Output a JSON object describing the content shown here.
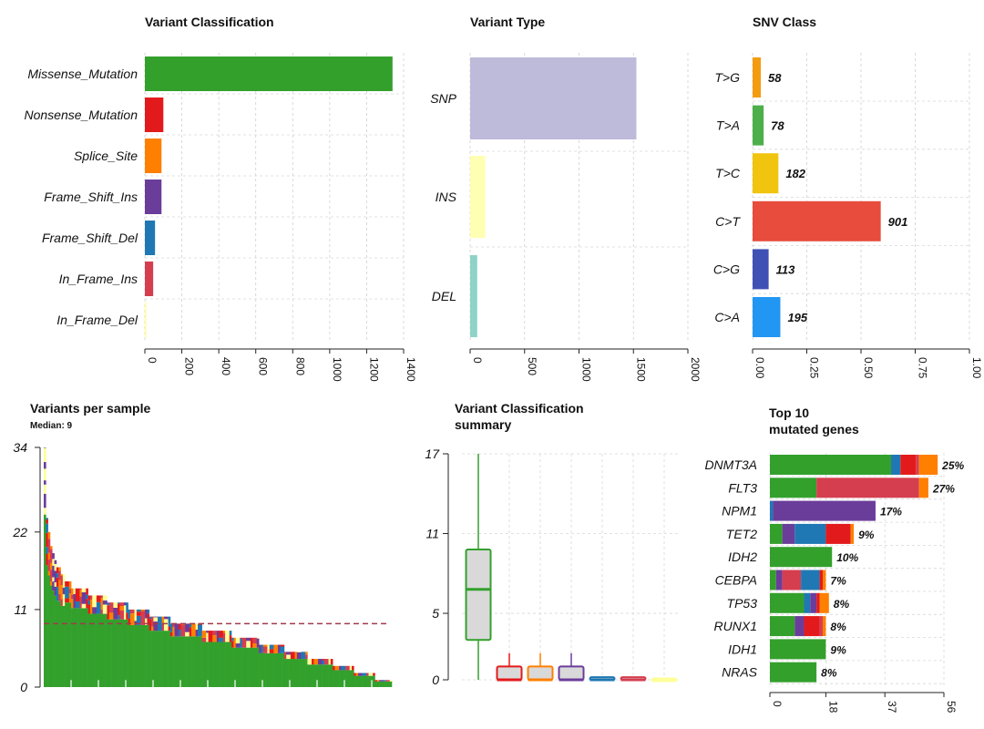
{
  "colors": {
    "green": "#33a02c",
    "red": "#e31a1c",
    "orange": "#ff7f00",
    "purple": "#6a3d9a",
    "blue": "#1f78b4",
    "crimson": "#d53e4f",
    "yellow": "#ffff99",
    "snp": "#bebada",
    "ins": "#ffffb3",
    "del": "#8dd3c7",
    "tg": "#f39c12",
    "ta": "#4daf4a",
    "tc": "#f1c40f",
    "ct": "#e74c3c",
    "cg": "#3f51b5",
    "ca": "#2196f3"
  },
  "chart_data": [
    {
      "type": "bar",
      "orientation": "horizontal",
      "title": "Variant Classification",
      "categories": [
        "Missense_Mutation",
        "Nonsense_Mutation",
        "Splice_Site",
        "Frame_Shift_Ins",
        "Frame_Shift_Del",
        "In_Frame_Ins",
        "In_Frame_Del"
      ],
      "values": [
        1340,
        100,
        90,
        90,
        55,
        45,
        8
      ],
      "colors": [
        "#33a02c",
        "#e31a1c",
        "#ff7f00",
        "#6a3d9a",
        "#1f78b4",
        "#d53e4f",
        "#ffff99"
      ],
      "xlim": [
        0,
        1400
      ],
      "xticks": [
        "0",
        "200",
        "400",
        "600",
        "800",
        "1000",
        "1200",
        "1400"
      ],
      "grid": true
    },
    {
      "type": "bar",
      "orientation": "horizontal",
      "title": "Variant Type",
      "categories": [
        "SNP",
        "INS",
        "DEL"
      ],
      "values": [
        1527,
        140,
        65
      ],
      "colors": [
        "#bebada",
        "#ffffb3",
        "#8dd3c7"
      ],
      "xlim": [
        0,
        2000
      ],
      "xticks": [
        "0",
        "500",
        "1000",
        "1500",
        "2000"
      ],
      "grid": true
    },
    {
      "type": "bar",
      "orientation": "horizontal",
      "title": "SNV Class",
      "categories": [
        "T>G",
        "T>A",
        "T>C",
        "C>T",
        "C>G",
        "C>A"
      ],
      "values": [
        0.038,
        0.051,
        0.119,
        0.591,
        0.074,
        0.128
      ],
      "labels": [
        "58",
        "78",
        "182",
        "901",
        "113",
        "195"
      ],
      "colors": [
        "#f39c12",
        "#4daf4a",
        "#f1c40f",
        "#e74c3c",
        "#3f51b5",
        "#2196f3"
      ],
      "xlim": [
        0,
        1
      ],
      "xticks": [
        "0.00",
        "0.25",
        "0.50",
        "0.75",
        "1.00"
      ],
      "grid": true
    },
    {
      "type": "bar",
      "stacked": true,
      "title": "Variants per sample",
      "subtitle": "Median: 9",
      "median": 9,
      "ylim": [
        0,
        34
      ],
      "yticks": [
        "0",
        "11",
        "22",
        "34"
      ],
      "samples": [
        34,
        24,
        22,
        20,
        19,
        18,
        17,
        17,
        16,
        16,
        15,
        15,
        15,
        14,
        14,
        14,
        14,
        14,
        14,
        14,
        14,
        13,
        13,
        13,
        13,
        13,
        13,
        13,
        13,
        13,
        12,
        12,
        12,
        12,
        12,
        12,
        12,
        12,
        12,
        12,
        11,
        11,
        11,
        11,
        11,
        11,
        11,
        11,
        11,
        11,
        10,
        10,
        10,
        10,
        10,
        10,
        10,
        10,
        10,
        10,
        9,
        9,
        9,
        9,
        9,
        9,
        9,
        9,
        9,
        9,
        9,
        9,
        9,
        9,
        9,
        8,
        8,
        8,
        8,
        8,
        8,
        8,
        8,
        8,
        8,
        8,
        8,
        8,
        8,
        7,
        7,
        7,
        7,
        7,
        7,
        7,
        7,
        7,
        7,
        7,
        7,
        7,
        6,
        6,
        6,
        6,
        6,
        6,
        6,
        6,
        6,
        6,
        6,
        6,
        5,
        5,
        5,
        5,
        5,
        5,
        5,
        5,
        5,
        5,
        5,
        4,
        4,
        4,
        4,
        4,
        4,
        4,
        4,
        4,
        4,
        4,
        4,
        3,
        3,
        3,
        3,
        3,
        3,
        3,
        3,
        3,
        3,
        2,
        2,
        2,
        2,
        2,
        2,
        2,
        2,
        2,
        2,
        1,
        1,
        1,
        1,
        1,
        1,
        1,
        1
      ],
      "colors": [
        "#33a02c",
        "#e31a1c",
        "#ff7f00",
        "#6a3d9a",
        "#1f78b4",
        "#d53e4f",
        "#ffff99"
      ]
    },
    {
      "type": "box",
      "title": "Variant Classification summary",
      "ylim": [
        0,
        17
      ],
      "yticks": [
        "0",
        "5",
        "11",
        "17"
      ],
      "boxes": [
        {
          "color": "#33a02c",
          "min": 0,
          "q1": 3,
          "median": 6.8,
          "q3": 9.8,
          "max": 17
        },
        {
          "color": "#e31a1c",
          "min": 0,
          "q1": 0,
          "median": 0,
          "q3": 1,
          "max": 2
        },
        {
          "color": "#ff7f00",
          "min": 0,
          "q1": 0,
          "median": 0,
          "q3": 1,
          "max": 2
        },
        {
          "color": "#6a3d9a",
          "min": 0,
          "q1": 0,
          "median": 0,
          "q3": 1,
          "max": 2
        },
        {
          "color": "#1f78b4",
          "min": 0,
          "q1": 0,
          "median": 0,
          "q3": 0.2,
          "max": 0.2
        },
        {
          "color": "#d53e4f",
          "min": 0,
          "q1": 0,
          "median": 0,
          "q3": 0.2,
          "max": 0.2
        },
        {
          "color": "#ffff99",
          "min": 0,
          "q1": 0,
          "median": 0,
          "q3": 0.1,
          "max": 0.1
        }
      ]
    },
    {
      "type": "bar",
      "orientation": "horizontal",
      "stacked": true,
      "title": "Top 10 mutated genes",
      "xlim": [
        0,
        56
      ],
      "xticks": [
        "0",
        "18",
        "37",
        "56"
      ],
      "genes": [
        {
          "name": "DNMT3A",
          "pct": "25%",
          "segments": [
            {
              "color": "#33a02c",
              "value": 39
            },
            {
              "color": "#1f78b4",
              "value": 3
            },
            {
              "color": "#e31a1c",
              "value": 5
            },
            {
              "color": "#d53e4f",
              "value": 1
            },
            {
              "color": "#ff7f00",
              "value": 6
            }
          ]
        },
        {
          "name": "FLT3",
          "pct": "27%",
          "segments": [
            {
              "color": "#33a02c",
              "value": 15
            },
            {
              "color": "#d53e4f",
              "value": 33
            },
            {
              "color": "#ff7f00",
              "value": 3
            }
          ]
        },
        {
          "name": "NPM1",
          "pct": "17%",
          "segments": [
            {
              "color": "#1f78b4",
              "value": 1
            },
            {
              "color": "#6a3d9a",
              "value": 33
            }
          ]
        },
        {
          "name": "TET2",
          "pct": "9%",
          "segments": [
            {
              "color": "#33a02c",
              "value": 4
            },
            {
              "color": "#6a3d9a",
              "value": 4
            },
            {
              "color": "#1f78b4",
              "value": 10
            },
            {
              "color": "#e31a1c",
              "value": 8
            },
            {
              "color": "#ff7f00",
              "value": 1
            }
          ]
        },
        {
          "name": "IDH2",
          "pct": "10%",
          "segments": [
            {
              "color": "#33a02c",
              "value": 20
            }
          ]
        },
        {
          "name": "CEBPA",
          "pct": "7%",
          "segments": [
            {
              "color": "#33a02c",
              "value": 2
            },
            {
              "color": "#6a3d9a",
              "value": 2
            },
            {
              "color": "#d53e4f",
              "value": 6
            },
            {
              "color": "#1f78b4",
              "value": 6
            },
            {
              "color": "#e31a1c",
              "value": 1
            },
            {
              "color": "#ff7f00",
              "value": 1
            }
          ]
        },
        {
          "name": "TP53",
          "pct": "8%",
          "segments": [
            {
              "color": "#33a02c",
              "value": 11
            },
            {
              "color": "#1f78b4",
              "value": 2
            },
            {
              "color": "#6a3d9a",
              "value": 2
            },
            {
              "color": "#e31a1c",
              "value": 1
            },
            {
              "color": "#ff7f00",
              "value": 3
            }
          ]
        },
        {
          "name": "RUNX1",
          "pct": "8%",
          "segments": [
            {
              "color": "#33a02c",
              "value": 8
            },
            {
              "color": "#6a3d9a",
              "value": 3
            },
            {
              "color": "#e31a1c",
              "value": 5
            },
            {
              "color": "#d53e4f",
              "value": 1
            },
            {
              "color": "#ff7f00",
              "value": 1
            }
          ]
        },
        {
          "name": "IDH1",
          "pct": "9%",
          "segments": [
            {
              "color": "#33a02c",
              "value": 18
            }
          ]
        },
        {
          "name": "NRAS",
          "pct": "8%",
          "segments": [
            {
              "color": "#33a02c",
              "value": 15
            }
          ]
        }
      ]
    }
  ]
}
